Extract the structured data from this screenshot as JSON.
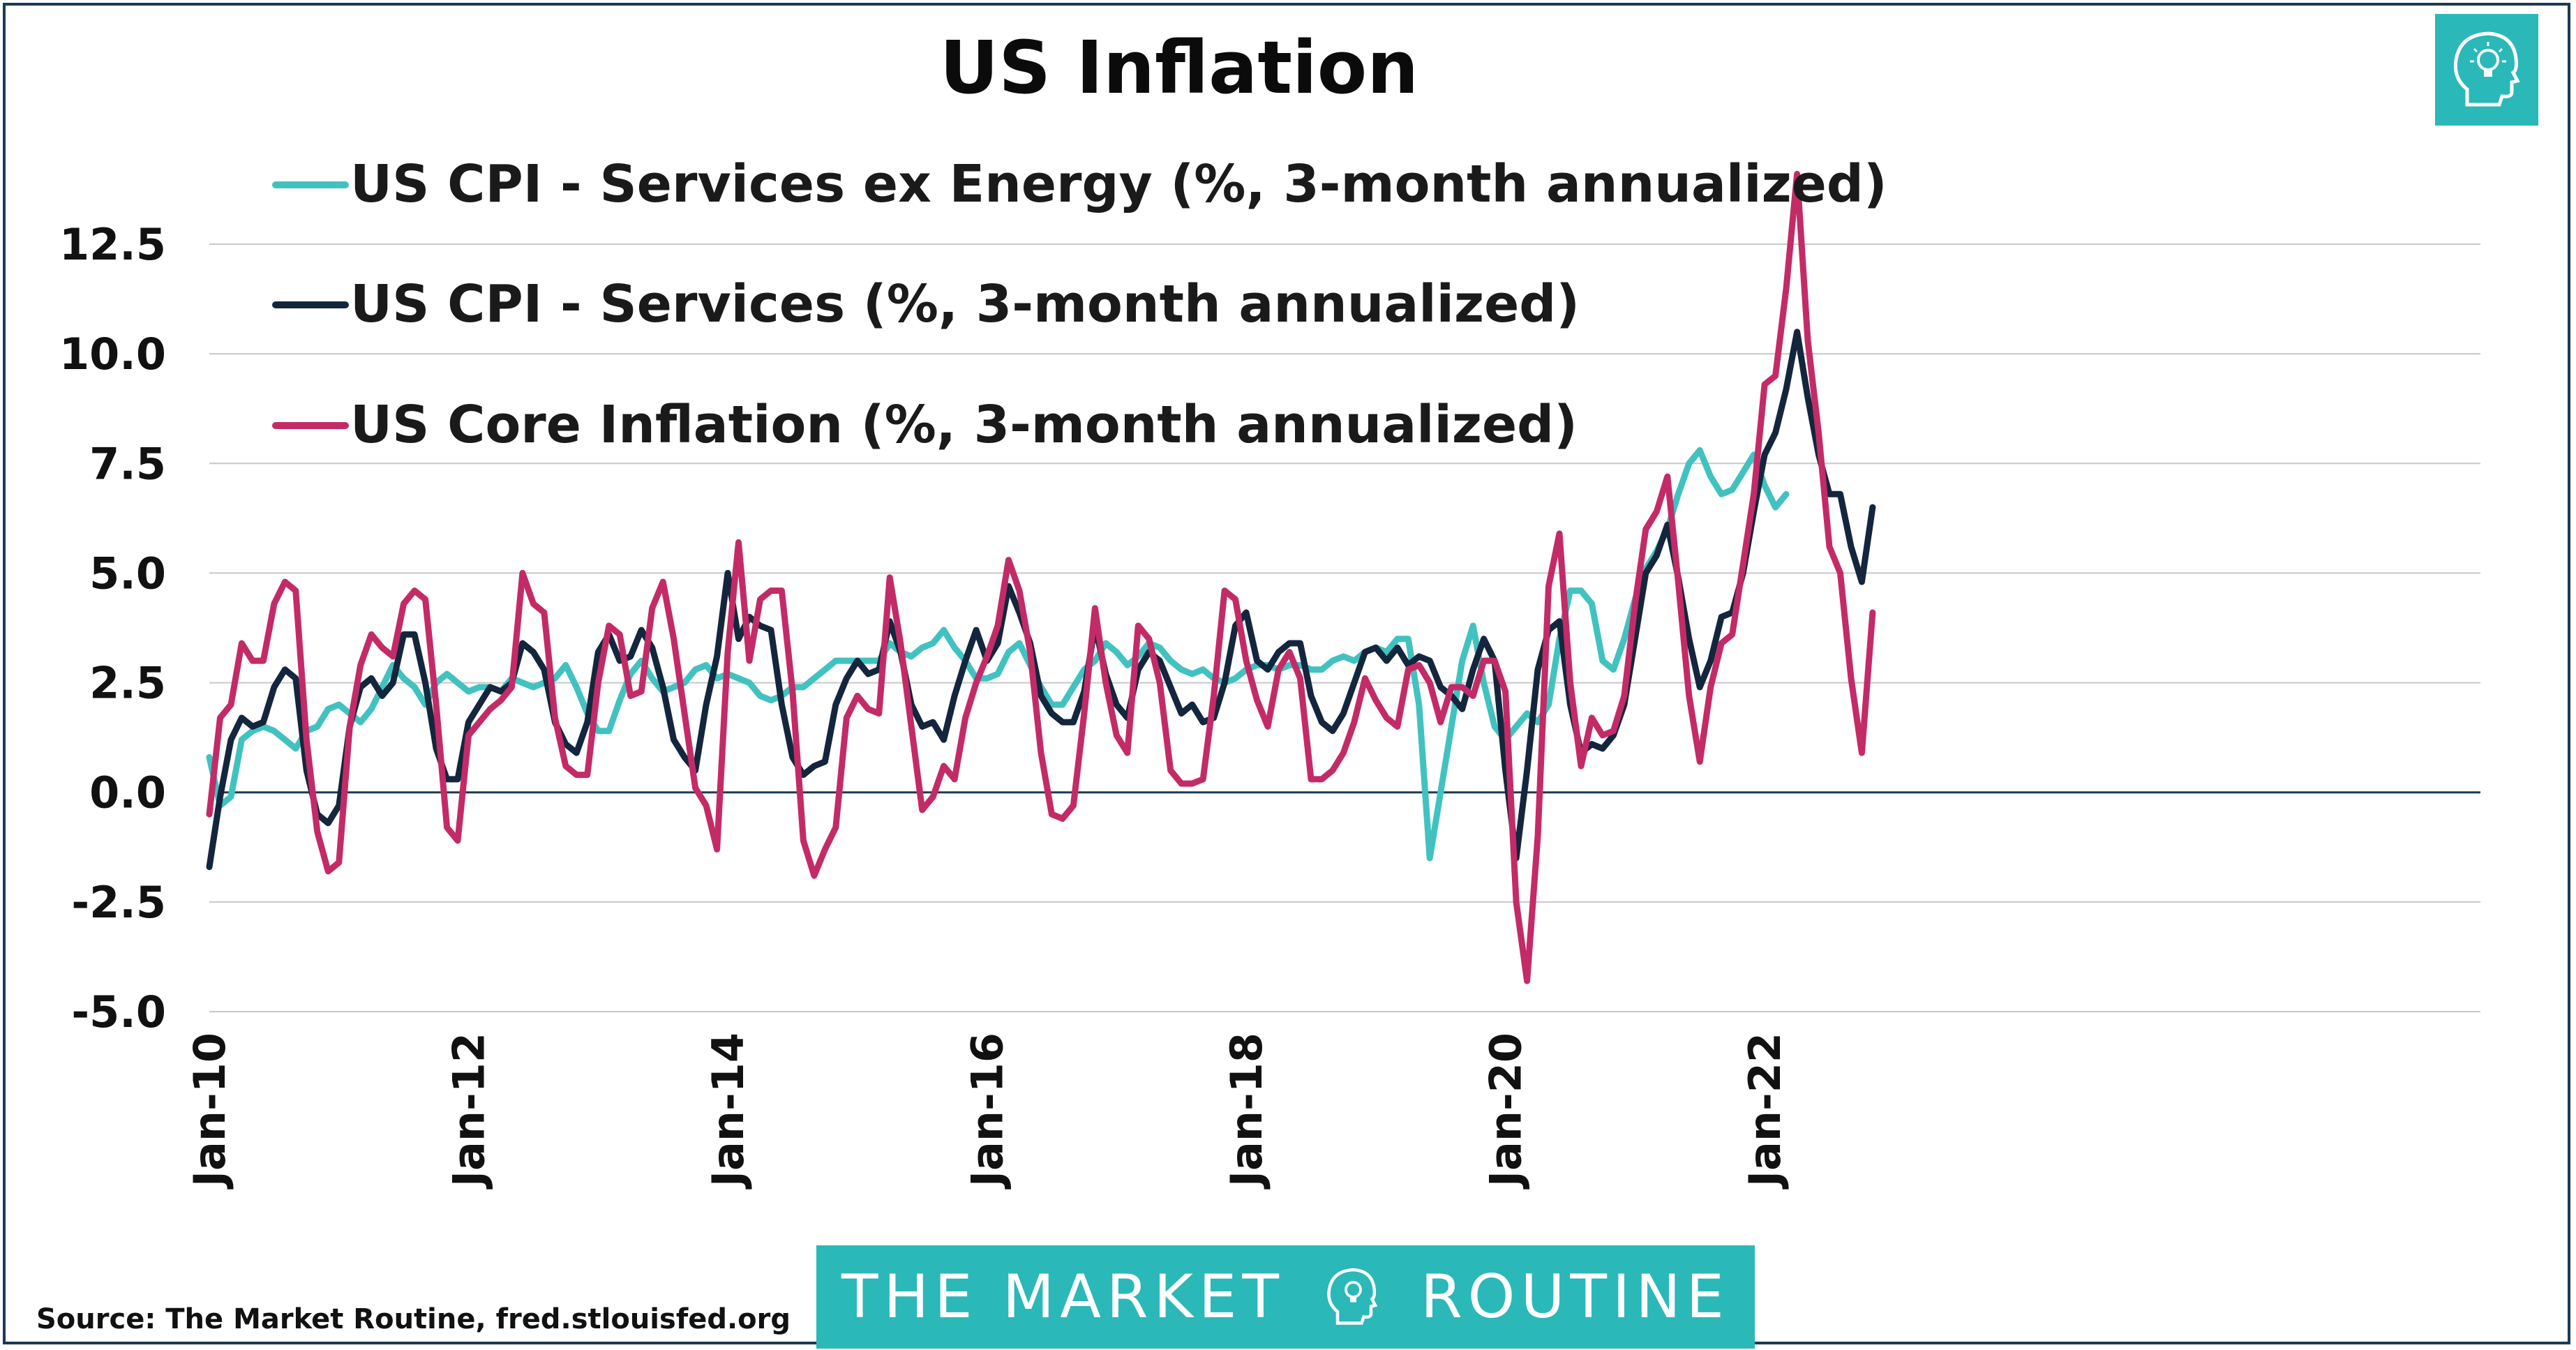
{
  "title": "US Inflation",
  "source": "Source: The Market Routine, fred.stlouisfed.org",
  "banner": {
    "left": "THE MARKET",
    "right": "ROUTINE"
  },
  "logo_icon": "lightbulb-head-icon",
  "colors": {
    "services_ex_energy": "#41c2c0",
    "services": "#13263d",
    "core": "#c32b67",
    "accent": "#2bb8b8"
  },
  "chart_data": {
    "type": "line",
    "ylim": [
      -5.0,
      12.5
    ],
    "yticks": [
      "12.5",
      "10.0",
      "7.5",
      "5.0",
      "2.5",
      "0.0",
      "-2.5",
      "-5.0"
    ],
    "xtick_labels": [
      "Jan-10",
      "Jan-12",
      "Jan-14",
      "Jan-16",
      "Jan-18",
      "Jan-20",
      "Jan-22"
    ],
    "xlabel": "",
    "ylabel": "",
    "grid": true,
    "legend": "top-left",
    "x_start": "Jan-10",
    "series": [
      {
        "name": "US CPI - Services ex Energy (%, 3-month annualized)",
        "values": [
          0.8,
          -0.3,
          -0.1,
          1.2,
          1.4,
          1.5,
          1.4,
          1.2,
          1.0,
          1.4,
          1.5,
          1.9,
          2.0,
          1.8,
          1.6,
          1.9,
          2.4,
          2.9,
          2.6,
          2.4,
          2.0,
          2.5,
          2.7,
          2.5,
          2.3,
          2.4,
          2.4,
          2.3,
          2.6,
          2.5,
          2.4,
          2.5,
          2.6,
          2.9,
          2.4,
          1.8,
          1.4,
          1.4,
          2.1,
          2.7,
          3.0,
          2.6,
          2.3,
          2.4,
          2.5,
          2.8,
          2.9,
          2.6,
          2.7,
          2.6,
          2.5,
          2.2,
          2.1,
          2.2,
          2.4,
          2.4,
          2.6,
          2.8,
          3.0,
          3.0,
          3.0,
          3.0,
          3.0,
          3.4,
          3.2,
          3.1,
          3.3,
          3.4,
          3.7,
          3.3,
          3.0,
          2.6,
          2.6,
          2.7,
          3.2,
          3.4,
          2.9,
          2.4,
          2.0,
          2.0,
          2.4,
          2.8,
          3.0,
          3.4,
          3.2,
          2.9,
          3.1,
          3.4,
          3.3,
          3.0,
          2.8,
          2.7,
          2.8,
          2.6,
          2.5,
          2.6,
          2.8,
          2.9,
          2.9,
          2.8,
          2.9,
          2.9,
          2.8,
          2.8,
          3.0,
          3.1,
          3.0,
          3.2,
          3.3,
          3.2,
          3.5,
          3.5,
          2.0,
          -1.5,
          0.0,
          1.5,
          3.0,
          3.8,
          2.5,
          1.5,
          1.2,
          1.5,
          1.8,
          1.6,
          2.0,
          3.5,
          4.6,
          4.6,
          4.3,
          3.0,
          2.8,
          3.5,
          4.4,
          5.1,
          5.5,
          6.0,
          6.8,
          7.5,
          7.8,
          7.2,
          6.8,
          6.9,
          7.3,
          7.7,
          7.0,
          6.5,
          6.8
        ],
        "color": "#41c2c0"
      },
      {
        "name": "US CPI - Services (%, 3-month annualized)",
        "values": [
          -1.7,
          -0.1,
          1.2,
          1.7,
          1.5,
          1.6,
          2.4,
          2.8,
          2.6,
          0.5,
          -0.5,
          -0.7,
          -0.3,
          1.5,
          2.4,
          2.6,
          2.2,
          2.5,
          3.6,
          3.6,
          2.5,
          1.0,
          0.3,
          0.3,
          1.6,
          2.0,
          2.4,
          2.3,
          2.5,
          3.4,
          3.2,
          2.8,
          1.6,
          1.1,
          0.9,
          1.6,
          3.2,
          3.6,
          3.0,
          3.1,
          3.7,
          3.3,
          2.4,
          1.2,
          0.8,
          0.5,
          2.0,
          3.1,
          5.0,
          3.5,
          4.0,
          3.8,
          3.7,
          2.0,
          0.8,
          0.4,
          0.6,
          0.7,
          2.0,
          2.6,
          3.0,
          2.7,
          2.8,
          3.9,
          3.2,
          2.0,
          1.5,
          1.6,
          1.2,
          2.2,
          3.0,
          3.7,
          3.0,
          3.4,
          4.7,
          4.1,
          3.4,
          2.2,
          1.8,
          1.6,
          1.6,
          2.3,
          3.8,
          2.7,
          2.0,
          1.7,
          2.8,
          3.2,
          3.0,
          2.4,
          1.8,
          2.0,
          1.6,
          1.7,
          2.5,
          3.8,
          4.1,
          3.0,
          2.8,
          3.2,
          3.4,
          3.4,
          2.2,
          1.6,
          1.4,
          1.8,
          2.5,
          3.2,
          3.3,
          3.0,
          3.3,
          2.9,
          3.1,
          3.0,
          2.4,
          2.2,
          1.9,
          2.8,
          3.5,
          3.0,
          0.5,
          -1.5,
          0.5,
          2.8,
          3.7,
          3.9,
          2.0,
          0.9,
          1.1,
          1.0,
          1.3,
          2.0,
          3.5,
          5.0,
          5.4,
          6.1,
          4.9,
          3.5,
          2.4,
          3.0,
          4.0,
          4.1,
          5.0,
          6.4,
          7.7,
          8.2,
          9.2,
          10.5,
          9.0,
          7.7,
          6.8,
          6.8,
          5.6,
          4.8,
          6.5
        ],
        "color": "#13263d"
      },
      {
        "name": "US Core Inflation (%, 3-month annualized)",
        "values": [
          -0.5,
          1.7,
          2.0,
          3.4,
          3.0,
          3.0,
          4.3,
          4.8,
          4.6,
          1.2,
          -0.9,
          -1.8,
          -1.6,
          1.5,
          2.9,
          3.6,
          3.3,
          3.1,
          4.3,
          4.6,
          4.4,
          2.0,
          -0.8,
          -1.1,
          1.3,
          1.6,
          1.9,
          2.1,
          2.4,
          5.0,
          4.3,
          4.1,
          1.7,
          0.6,
          0.4,
          0.4,
          2.5,
          3.8,
          3.6,
          2.2,
          2.3,
          4.2,
          4.8,
          3.5,
          1.8,
          0.1,
          -0.3,
          -1.3,
          3.2,
          5.7,
          3.0,
          4.4,
          4.6,
          4.6,
          2.3,
          -1.1,
          -1.9,
          -1.3,
          -0.8,
          1.7,
          2.2,
          1.9,
          1.8,
          4.9,
          3.4,
          1.5,
          -0.4,
          -0.1,
          0.6,
          0.3,
          1.7,
          2.5,
          3.1,
          3.8,
          5.3,
          4.6,
          3.2,
          0.9,
          -0.5,
          -0.6,
          -0.3,
          1.8,
          4.2,
          2.5,
          1.3,
          0.9,
          3.8,
          3.5,
          2.5,
          0.5,
          0.2,
          0.2,
          0.3,
          2.2,
          4.6,
          4.4,
          3.0,
          2.1,
          1.5,
          2.8,
          3.2,
          2.6,
          0.3,
          0.3,
          0.5,
          0.9,
          1.6,
          2.6,
          2.1,
          1.7,
          1.5,
          2.8,
          2.9,
          2.5,
          1.6,
          2.4,
          2.4,
          2.2,
          3.0,
          3.0,
          2.3,
          -2.5,
          -4.3,
          -1.0,
          4.7,
          5.9,
          2.5,
          0.6,
          1.7,
          1.3,
          1.4,
          2.2,
          4.3,
          6.0,
          6.4,
          7.2,
          4.8,
          2.2,
          0.7,
          2.4,
          3.4,
          3.6,
          5.2,
          6.8,
          9.3,
          9.5,
          11.5,
          14.1,
          10.3,
          8.2,
          5.6,
          5.0,
          2.6,
          0.9,
          4.1
        ],
        "color": "#c32b67"
      }
    ]
  }
}
